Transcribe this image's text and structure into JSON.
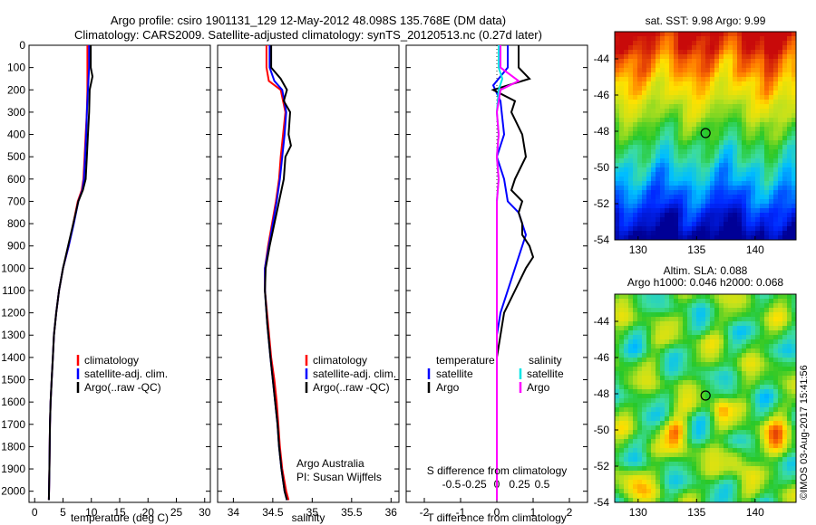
{
  "header": {
    "title_line1": "Argo profile: csiro 1901131_129 12-May-2012 48.098S 135.768E (DM data)",
    "title_line2": "Climatology: CARS2009. Satellite-adjusted climatology: synTS_20120513.nc (0.27d later)"
  },
  "footer": {
    "credit": "©IMOS 03-Aug-2017 15:41:56",
    "argo_australia": "Argo Australia",
    "pi": "PI: Susan Wijffels"
  },
  "colors": {
    "climatology": "#ff0000",
    "satellite_adj": "#0000ff",
    "argo": "#000000",
    "salinity_satellite": "#00e5e5",
    "salinity_argo": "#ff00ff"
  },
  "chart_data": [
    {
      "type": "line",
      "name": "temperature-profile",
      "xlabel": "temperature (deg C)",
      "ylabel": "",
      "xlim": [
        -1,
        31
      ],
      "ylim": [
        2050,
        0
      ],
      "xticks": [
        0,
        5,
        10,
        15,
        20,
        25,
        30
      ],
      "yticks": [
        0,
        100,
        200,
        300,
        400,
        500,
        600,
        700,
        800,
        900,
        1000,
        1100,
        1200,
        1300,
        1400,
        1500,
        1600,
        1700,
        1800,
        1900,
        2000
      ],
      "legend": [
        "climatology",
        "satellite-adj. clim.",
        "Argo(..raw -QC)"
      ],
      "series": [
        {
          "name": "climatology",
          "color": "#ff0000",
          "x": [
            9.3,
            9.3,
            9.3,
            9.2,
            9.0,
            8.8,
            8.6,
            8.3,
            7.6,
            6.8,
            6.0,
            5.0,
            4.3,
            3.8,
            3.4,
            3.2,
            3.0,
            2.8,
            2.7,
            2.6,
            2.5
          ],
          "y": [
            0,
            100,
            200,
            300,
            400,
            500,
            600,
            650,
            700,
            800,
            900,
            1000,
            1100,
            1200,
            1300,
            1400,
            1500,
            1600,
            1700,
            1900,
            2040
          ]
        },
        {
          "name": "satellite-adj. clim.",
          "color": "#0000ff",
          "x": [
            9.6,
            9.6,
            9.4,
            9.2,
            9.1,
            8.9,
            8.7,
            8.4,
            7.7,
            6.9,
            6.0,
            5.0,
            4.3,
            3.8,
            3.4,
            3.2,
            3.0,
            2.8,
            2.7,
            2.6,
            2.5
          ],
          "y": [
            0,
            100,
            200,
            300,
            400,
            500,
            600,
            650,
            700,
            800,
            900,
            1000,
            1100,
            1200,
            1300,
            1400,
            1500,
            1600,
            1700,
            1900,
            2040
          ]
        },
        {
          "name": "Argo(..raw -QC)",
          "color": "#000000",
          "x": [
            9.9,
            9.9,
            10.2,
            9.7,
            9.6,
            9.4,
            9.2,
            9.0,
            8.5,
            7.7,
            6.8,
            5.9,
            5.0,
            4.3,
            3.8,
            3.4,
            3.2,
            3.0,
            2.8,
            2.7,
            2.6,
            2.5
          ],
          "y": [
            0,
            100,
            140,
            200,
            300,
            400,
            500,
            600,
            650,
            700,
            800,
            900,
            1000,
            1100,
            1200,
            1300,
            1400,
            1500,
            1600,
            1700,
            1900,
            2040
          ]
        }
      ]
    },
    {
      "type": "line",
      "name": "salinity-profile",
      "xlabel": "salinity",
      "ylabel": "",
      "xlim": [
        33.8,
        36.1
      ],
      "ylim": [
        2050,
        0
      ],
      "xticks": [
        34,
        34.5,
        35,
        35.5,
        36
      ],
      "legend": [
        "climatology",
        "satellite-adj. clim.",
        "Argo(..raw -QC)"
      ],
      "series": [
        {
          "name": "climatology",
          "color": "#ff0000",
          "x": [
            34.42,
            34.42,
            34.45,
            34.6,
            34.66,
            34.63,
            34.6,
            34.58,
            34.54,
            34.49,
            34.44,
            34.4,
            34.4,
            34.44,
            34.48,
            34.52,
            34.55,
            34.57,
            34.59,
            34.62,
            34.67,
            34.7
          ],
          "y": [
            0,
            100,
            160,
            200,
            300,
            400,
            500,
            600,
            700,
            800,
            900,
            1000,
            1100,
            1250,
            1400,
            1500,
            1600,
            1700,
            1800,
            1900,
            2000,
            2040
          ]
        },
        {
          "name": "satellite-adj. clim.",
          "color": "#0000ff",
          "x": [
            34.46,
            34.46,
            34.52,
            34.62,
            34.67,
            34.65,
            34.62,
            34.59,
            34.55,
            34.5,
            34.45,
            34.4,
            34.4,
            34.43,
            34.47,
            34.5,
            34.53,
            34.56,
            34.58,
            34.61,
            34.65,
            34.68
          ],
          "y": [
            0,
            100,
            160,
            200,
            300,
            400,
            500,
            600,
            700,
            800,
            900,
            1000,
            1100,
            1250,
            1400,
            1500,
            1600,
            1700,
            1800,
            1900,
            2000,
            2040
          ]
        },
        {
          "name": "Argo(..raw -QC)",
          "color": "#000000",
          "x": [
            34.48,
            34.48,
            34.6,
            34.68,
            34.64,
            34.72,
            34.7,
            34.73,
            34.66,
            34.64,
            34.58,
            34.52,
            34.46,
            34.41,
            34.4,
            34.43,
            34.47,
            34.5,
            34.53,
            34.56,
            34.58,
            34.61,
            34.65,
            34.68
          ],
          "y": [
            0,
            100,
            150,
            200,
            250,
            300,
            400,
            450,
            500,
            600,
            700,
            800,
            900,
            1000,
            1100,
            1250,
            1400,
            1500,
            1600,
            1700,
            1800,
            1900,
            2000,
            2040
          ]
        }
      ]
    },
    {
      "type": "line",
      "name": "difference-profile",
      "xlabel": "T difference from climatology",
      "xlabel2": "S difference from climatology",
      "xlim": [
        -2.5,
        2.5
      ],
      "ylim": [
        2050,
        0
      ],
      "xticks": [
        -2,
        -1,
        0,
        1,
        2
      ],
      "xticks2": [
        -0.5,
        -0.25,
        0,
        0.25,
        0.5
      ],
      "legend_temperature_title": "temperature",
      "legend_salinity_title": "salinity",
      "legend_entries": [
        "satellite",
        "Argo",
        "satellite",
        "Argo"
      ],
      "series": [
        {
          "name": "temperature satellite",
          "color": "#0000ff",
          "x": [
            0.3,
            0.3,
            -0.1,
            0.1,
            0.2,
            0.0,
            0.2,
            0.3,
            0.6,
            0.7,
            0.8,
            0.5,
            0.1,
            0.0,
            0.0,
            0.0,
            0.0,
            0.0,
            0.0,
            0.0,
            0.0
          ],
          "y": [
            0,
            100,
            180,
            250,
            400,
            500,
            600,
            700,
            750,
            800,
            850,
            1000,
            1200,
            1300,
            1400,
            1500,
            1600,
            1700,
            1800,
            1900,
            2040
          ]
        },
        {
          "name": "temperature Argo",
          "color": "#000000",
          "x": [
            0.6,
            0.6,
            0.9,
            0.3,
            -0.1,
            0.5,
            0.4,
            0.7,
            0.8,
            0.5,
            0.4,
            0.7,
            0.6,
            0.7,
            0.7,
            0.9,
            1.0,
            0.8,
            0.5,
            0.2,
            0.0,
            0.0,
            0.0,
            0.0
          ],
          "y": [
            0,
            100,
            150,
            180,
            200,
            250,
            300,
            400,
            500,
            600,
            650,
            700,
            750,
            800,
            850,
            900,
            950,
            1000,
            1100,
            1200,
            1400,
            1600,
            1800,
            2040
          ]
        },
        {
          "name": "salinity satellite",
          "color": "#00e5e5",
          "x": [
            0.05,
            0.05,
            0.15,
            0.05,
            0.0,
            0.05,
            0.0,
            0.05,
            0.0,
            0.0,
            0.0,
            0.0,
            0.0,
            0.0,
            0.0,
            0.0
          ],
          "y": [
            0,
            100,
            150,
            200,
            300,
            400,
            500,
            600,
            700,
            800,
            900,
            1000,
            1100,
            1200,
            1500,
            2040
          ]
        },
        {
          "name": "salinity Argo",
          "color": "#ff00ff",
          "x": [
            0.1,
            0.1,
            0.6,
            0.1,
            0.0,
            0.05,
            0.0,
            0.05,
            0.0,
            0.0,
            0.0,
            0.0,
            0.0,
            0.0,
            0.0,
            0.0
          ],
          "y": [
            0,
            100,
            160,
            200,
            300,
            400,
            500,
            600,
            700,
            800,
            900,
            1000,
            1100,
            1200,
            1500,
            2040
          ]
        }
      ]
    },
    {
      "type": "heatmap",
      "name": "sst-map",
      "title": "sat. SST: 9.98  Argo: 9.99",
      "xlim": [
        128,
        143.5
      ],
      "ylim": [
        -54,
        -42.5
      ],
      "xticks": [
        130,
        135,
        140
      ],
      "yticks": [
        -44,
        -46,
        -48,
        -50,
        -52,
        -54
      ],
      "marker": {
        "lon": 135.768,
        "lat": -48.098
      }
    },
    {
      "type": "heatmap",
      "name": "sla-map",
      "title_line1": "Altim. SLA: 0.088",
      "title_line2": "Argo h1000: 0.046  h2000: 0.068",
      "xlim": [
        128,
        143.5
      ],
      "ylim": [
        -54,
        -42.5
      ],
      "xticks": [
        130,
        135,
        140
      ],
      "yticks": [
        -44,
        -46,
        -48,
        -50,
        -52,
        -54
      ],
      "marker": {
        "lon": 135.768,
        "lat": -48.098
      }
    }
  ]
}
